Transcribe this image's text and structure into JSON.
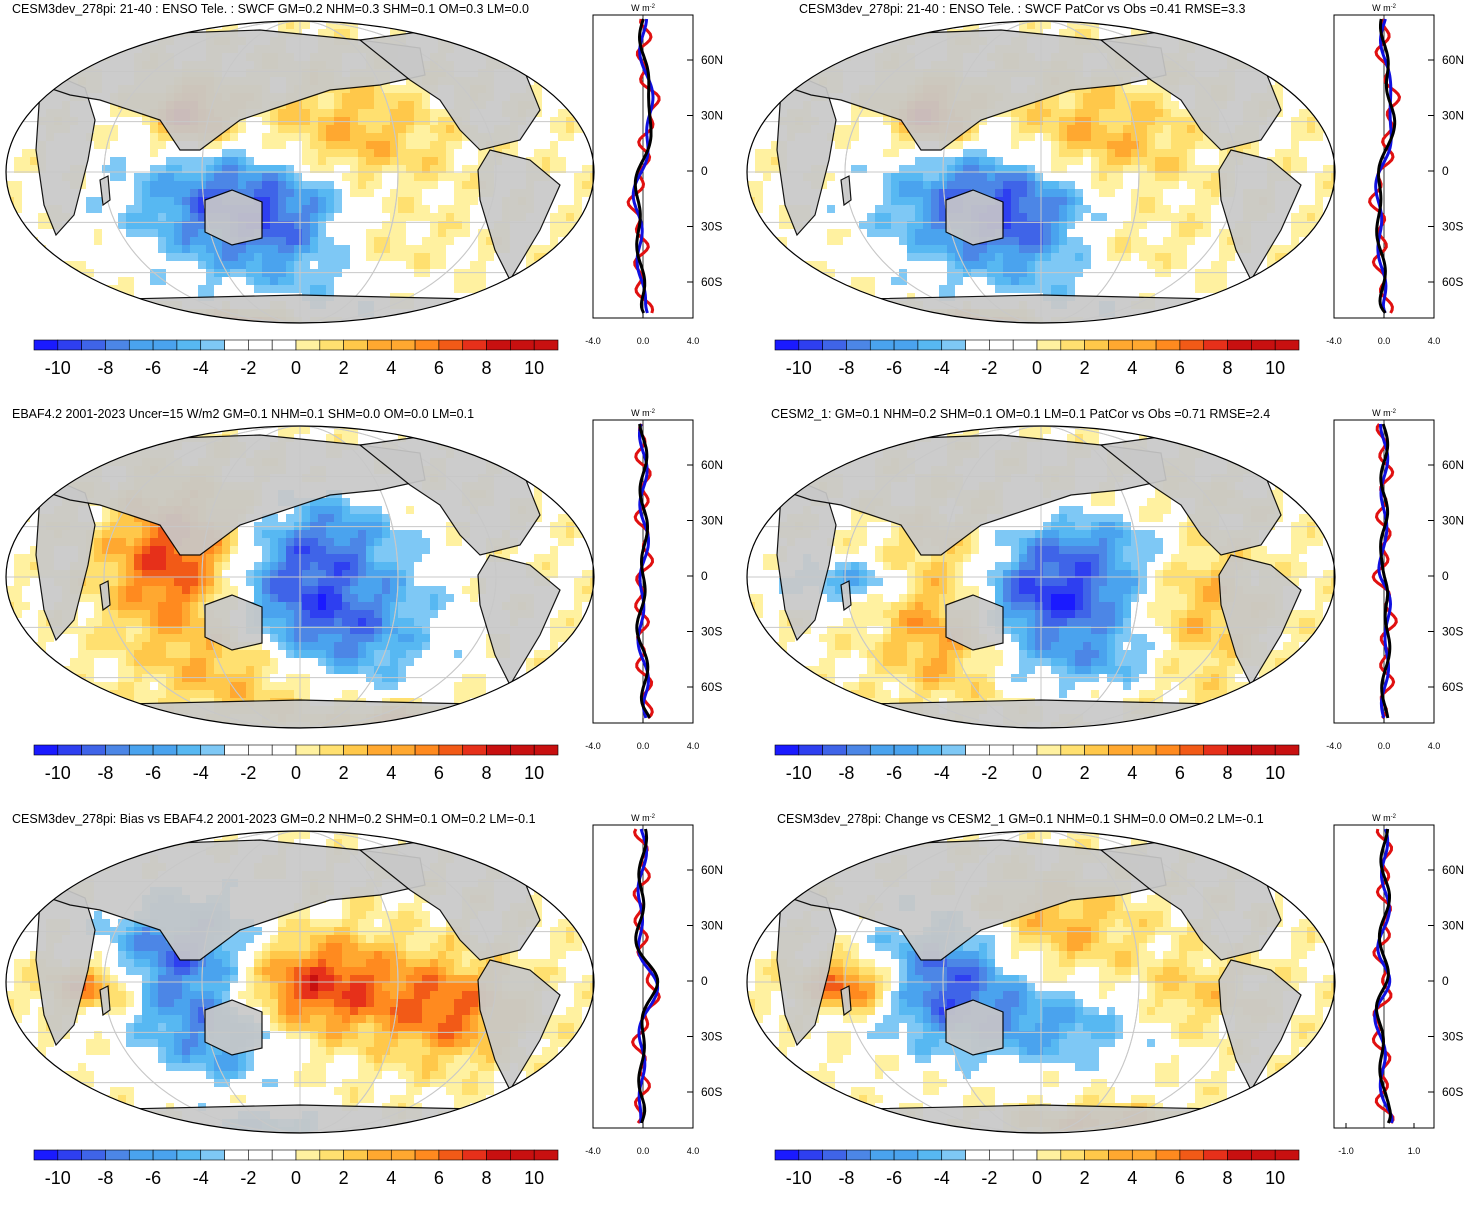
{
  "palette": [
    "#1a1aff",
    "#2e3ff0",
    "#3f64e8",
    "#4c86e6",
    "#4aa3ee",
    "#57b8f2",
    "#7ec8f5",
    "#ffffff",
    "#ffffff",
    "#fff1a0",
    "#ffe070",
    "#ffc84a",
    "#ffa830",
    "#ff8a1f",
    "#f25a17",
    "#e6301a",
    "#c81010"
  ],
  "colorbar": {
    "labels": [
      "-10",
      "-8",
      "-6",
      "-4",
      "-2",
      "0",
      "2",
      "4",
      "6",
      "8",
      "10"
    ]
  },
  "line_colors": {
    "model": "#e01010",
    "obs": "#1010e0",
    "mean": "#000000"
  },
  "lat_labels": [
    "60N",
    "30N",
    "0",
    "30S",
    "60S"
  ],
  "units": "W m",
  "units_exp": "-2",
  "panels": [
    {
      "id": "p1",
      "title": "CESM3dev_278pi: 21-40 : ENSO Tele. : SWCF GM=0.2 NHM=0.3 SHM=0.1 OM=0.3 LM=0.0",
      "xticks": [
        "-4.0",
        "0.0",
        "4.0"
      ],
      "pattern": [
        [
          170,
          -0.5,
          3.5,
          1.2,
          -9
        ],
        [
          220,
          0.3,
          3,
          1.4,
          6
        ],
        [
          215,
          -1.3,
          3.2,
          1.2,
          -6
        ],
        [
          235,
          -1.3,
          2.5,
          0.8,
          6
        ],
        [
          130,
          1.2,
          1.2,
          0.6,
          8
        ],
        [
          160,
          -2.9,
          1.6,
          0.25,
          8
        ]
      ]
    },
    {
      "id": "p2",
      "title": "CESM3dev_278pi: 21-40 : ENSO Tele. : SWCF PatCor vs Obs =0.41 RMSE=3.3",
      "xticks": [
        "-4.0",
        "0.0",
        "4.0"
      ],
      "pattern": [
        [
          175,
          -0.5,
          3.5,
          1.2,
          -9
        ],
        [
          225,
          0.3,
          3,
          1.4,
          6
        ],
        [
          215,
          -1.3,
          3.2,
          1.2,
          -6
        ],
        [
          235,
          -1.3,
          2.5,
          0.8,
          6
        ],
        [
          130,
          1.2,
          1.2,
          0.6,
          8
        ],
        [
          160,
          -2.9,
          1.6,
          0.25,
          8
        ]
      ]
    },
    {
      "id": "p3",
      "title": "EBAF4.2 2001-2023 Uncer=15 W/m2 GM=0.1 NHM=0.1 SHM=0.0 OM=0.0 LM=0.1",
      "xticks": [
        "-4.0",
        "0.0",
        "4.0"
      ],
      "pattern": [
        [
          190,
          -0.3,
          3.5,
          1.3,
          -9
        ],
        [
          125,
          0.3,
          2.2,
          1.4,
          10
        ],
        [
          175,
          -1.5,
          3.0,
          1.2,
          7
        ],
        [
          215,
          -1.3,
          2.8,
          1.0,
          -6
        ],
        [
          215,
          1.0,
          2.0,
          0.8,
          -4
        ],
        [
          260,
          -2.8,
          2.0,
          0.3,
          6
        ]
      ]
    },
    {
      "id": "p4",
      "title": "CESM2_1: GM=0.1 NHM=0.2 SHM=0.1 OM=0.1 LM=0.1 PatCor vs Obs =0.71 RMSE=2.4",
      "xticks": [
        "-4.0",
        "0.0",
        "4.0"
      ],
      "pattern": [
        [
          200,
          -0.3,
          3.5,
          1.0,
          -10
        ],
        [
          140,
          -0.5,
          2.0,
          1.5,
          8
        ],
        [
          290,
          -0.5,
          2.0,
          1.8,
          5
        ],
        [
          235,
          0.8,
          3.0,
          0.6,
          -4
        ],
        [
          235,
          -1.6,
          3.0,
          0.6,
          -4
        ],
        [
          80,
          0,
          2.0,
          0.4,
          -5
        ]
      ]
    },
    {
      "id": "p5",
      "title": "CESM3dev_278pi: Bias vs EBAF4.2 2001-2023 GM=0.2 NHM=0.2 SHM=0.1 OM=0.2 LM=-0.1",
      "xticks": [
        "-4.0",
        "0.0",
        "4.0"
      ],
      "pattern": [
        [
          130,
          0.5,
          2.5,
          1.2,
          -9
        ],
        [
          200,
          0,
          3,
          1.0,
          9
        ],
        [
          290,
          -0.5,
          2.0,
          1.0,
          6
        ],
        [
          150,
          -1.0,
          2.2,
          0.9,
          -6
        ],
        [
          70,
          0,
          1.5,
          0.5,
          7
        ],
        [
          180,
          -2.8,
          2.0,
          0.3,
          -5
        ]
      ]
    },
    {
      "id": "p6",
      "title": "CESM3dev_278pi: Change vs CESM2_1 GM=0.1 NHM=0.1 SHM=0.0 OM=0.2 LM=-0.1",
      "xticks": [
        "-1.0",
        "1.0"
      ],
      "pattern": [
        [
          140,
          0.2,
          2.2,
          1.2,
          -8
        ],
        [
          205,
          1.2,
          2.5,
          1.0,
          4
        ],
        [
          200,
          -0.8,
          3.2,
          0.8,
          -5
        ],
        [
          80,
          0,
          1.5,
          0.5,
          8
        ],
        [
          235,
          -2.7,
          2.5,
          0.3,
          5
        ],
        [
          290,
          -0.2,
          2.0,
          0.8,
          3
        ]
      ]
    }
  ]
}
